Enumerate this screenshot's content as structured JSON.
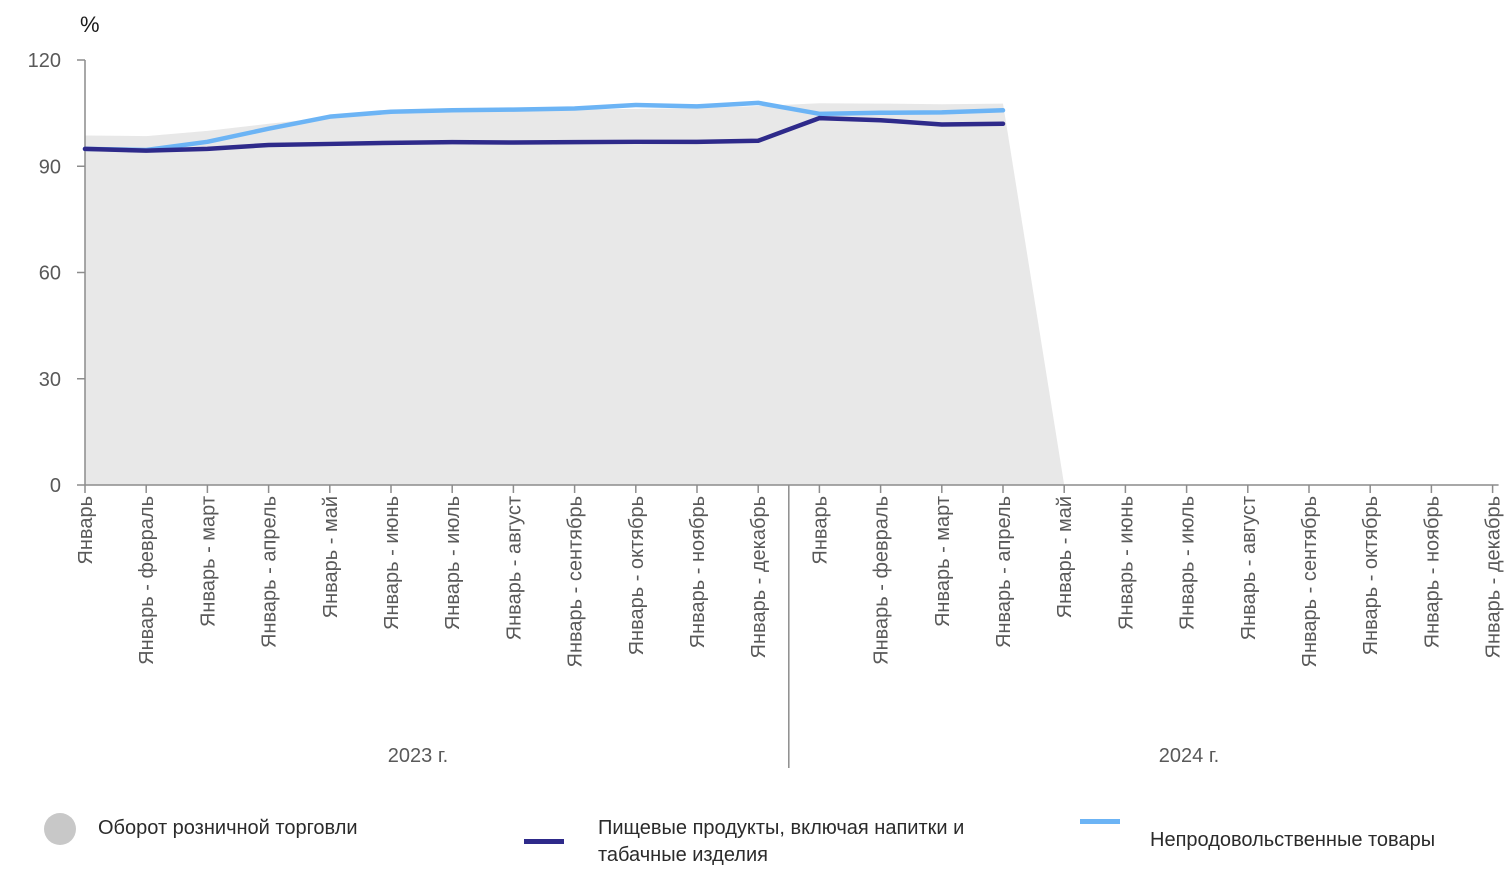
{
  "chart_data": {
    "type": "line",
    "unit_label": "%",
    "ylim": [
      0,
      120
    ],
    "yticks": [
      0,
      30,
      60,
      90,
      120
    ],
    "grid": false,
    "categories": [
      "Январь",
      "Январь - февраль",
      "Январь - март",
      "Январь - апрель",
      "Январь - май",
      "Январь - июнь",
      "Январь - июль",
      "Январь - август",
      "Январь - сентябрь",
      "Январь - октябрь",
      "Январь - ноябрь",
      "Январь - декабрь",
      "Январь",
      "Январь - февраль",
      "Январь - март",
      "Январь - апрель",
      "Январь - май",
      "Январь - июнь",
      "Январь - июль",
      "Январь - август",
      "Январь - сентябрь",
      "Январь - октябрь",
      "Январь - ноябрь",
      "Январь - декабрь"
    ],
    "groups": [
      {
        "label": "2023 г.",
        "count": 12
      },
      {
        "label": "2024 г.",
        "count": 12
      }
    ],
    "series": [
      {
        "name": "Оборот розничной торговли",
        "type": "area",
        "color": "#e8e8e8",
        "values": [
          98.7,
          98.5,
          100.0,
          102.0,
          103.8,
          104.8,
          105.3,
          105.6,
          106.0,
          106.2,
          106.4,
          107.0,
          107.8,
          107.7,
          107.5,
          107.7,
          0,
          null,
          null,
          null,
          null,
          null,
          null,
          null
        ]
      },
      {
        "name": "Пищевые продукты, включая напитки и табачные изделия",
        "type": "line",
        "color": "#2e2a8a",
        "values": [
          94.9,
          94.4,
          94.9,
          96.0,
          96.3,
          96.6,
          96.8,
          96.7,
          96.8,
          96.9,
          96.9,
          97.2,
          103.6,
          103.0,
          101.8,
          102.0,
          null,
          null,
          null,
          null,
          null,
          null,
          null,
          null
        ]
      },
      {
        "name": "Непродовольственные товары",
        "type": "line",
        "color": "#6cb4f5",
        "values": [
          94.9,
          94.6,
          96.9,
          100.6,
          104.0,
          105.4,
          105.8,
          106.0,
          106.3,
          107.3,
          106.9,
          107.9,
          104.8,
          105.1,
          105.2,
          105.8,
          null,
          null,
          null,
          null,
          null,
          null,
          null,
          null
        ]
      }
    ],
    "legend_position": "bottom"
  }
}
